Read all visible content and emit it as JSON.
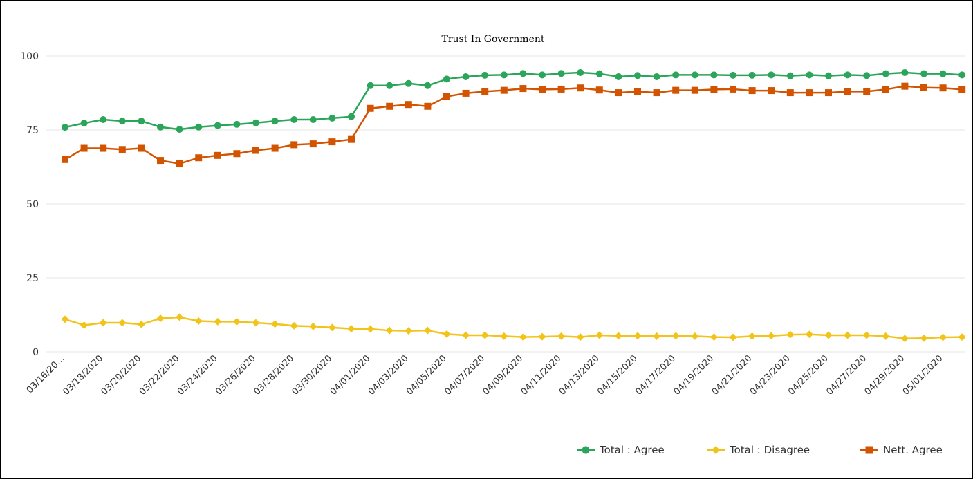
{
  "chart_data": {
    "type": "line",
    "title": "Trust In Government",
    "xlabel": "",
    "ylabel": "",
    "ylim": [
      0,
      100
    ],
    "yticks": [
      0,
      25,
      50,
      75,
      100
    ],
    "grid": true,
    "legend_position": "bottom-right",
    "x": [
      "03/16/2020",
      "03/17/2020",
      "03/18/2020",
      "03/19/2020",
      "03/20/2020",
      "03/21/2020",
      "03/22/2020",
      "03/23/2020",
      "03/24/2020",
      "03/25/2020",
      "03/26/2020",
      "03/27/2020",
      "03/28/2020",
      "03/29/2020",
      "03/30/2020",
      "03/31/2020",
      "04/01/2020",
      "04/02/2020",
      "04/03/2020",
      "04/04/2020",
      "04/05/2020",
      "04/06/2020",
      "04/07/2020",
      "04/08/2020",
      "04/09/2020",
      "04/10/2020",
      "04/11/2020",
      "04/12/2020",
      "04/13/2020",
      "04/14/2020",
      "04/15/2020",
      "04/16/2020",
      "04/17/2020",
      "04/18/2020",
      "04/19/2020",
      "04/20/2020",
      "04/21/2020",
      "04/22/2020",
      "04/23/2020",
      "04/24/2020",
      "04/25/2020",
      "04/26/2020",
      "04/27/2020",
      "04/28/2020",
      "04/29/2020",
      "04/30/2020",
      "05/01/2020",
      "05/02/2020"
    ],
    "x_tick_labels": [
      "03/16/20…",
      "03/18/2020",
      "03/20/2020",
      "03/22/2020",
      "03/24/2020",
      "03/26/2020",
      "03/28/2020",
      "03/30/2020",
      "04/01/2020",
      "04/03/2020",
      "04/05/2020",
      "04/07/2020",
      "04/09/2020",
      "04/11/2020",
      "04/13/2020",
      "04/15/2020",
      "04/17/2020",
      "04/19/2020",
      "04/21/2020",
      "04/23/2020",
      "04/25/2020",
      "04/27/2020",
      "04/29/2020",
      "05/01/2020"
    ],
    "series": [
      {
        "name": "Total : Agree",
        "color": "#2aa55a",
        "marker": "circle",
        "values": [
          75.9,
          77.3,
          78.5,
          78.0,
          78.0,
          76.0,
          75.2,
          76.0,
          76.5,
          76.9,
          77.4,
          78.0,
          78.5,
          78.5,
          79.0,
          79.5,
          90.0,
          90.0,
          90.7,
          90.0,
          92.2,
          93.0,
          93.5,
          93.6,
          94.1,
          93.6,
          94.1,
          94.4,
          94.0,
          93.0,
          93.4,
          93.0,
          93.6,
          93.6,
          93.6,
          93.5,
          93.5,
          93.6,
          93.3,
          93.6,
          93.3,
          93.6,
          93.4,
          94.0,
          94.4,
          94.0,
          94.0,
          93.6
        ]
      },
      {
        "name": "Total : Disagree",
        "color": "#f2c318",
        "marker": "diamond",
        "values": [
          11.0,
          9.0,
          9.8,
          9.8,
          9.3,
          11.3,
          11.7,
          10.4,
          10.2,
          10.2,
          9.8,
          9.4,
          8.8,
          8.6,
          8.2,
          7.8,
          7.7,
          7.2,
          7.1,
          7.2,
          6.0,
          5.6,
          5.6,
          5.3,
          5.0,
          5.1,
          5.3,
          5.0,
          5.6,
          5.4,
          5.4,
          5.3,
          5.4,
          5.3,
          5.0,
          4.9,
          5.3,
          5.4,
          5.8,
          5.9,
          5.6,
          5.6,
          5.6,
          5.3,
          4.5,
          4.6,
          4.9,
          5.0
        ]
      },
      {
        "name": "Nett. Agree",
        "color": "#d35400",
        "marker": "square",
        "values": [
          65.0,
          68.8,
          68.8,
          68.4,
          68.8,
          64.7,
          63.6,
          65.6,
          66.4,
          67.0,
          68.1,
          68.8,
          70.0,
          70.3,
          71.0,
          71.8,
          82.3,
          83.0,
          83.6,
          83.0,
          86.3,
          87.4,
          88.0,
          88.4,
          89.0,
          88.7,
          88.8,
          89.2,
          88.5,
          87.6,
          88.0,
          87.6,
          88.4,
          88.4,
          88.7,
          88.8,
          88.3,
          88.3,
          87.6,
          87.6,
          87.6,
          88.0,
          88.0,
          88.7,
          89.8,
          89.3,
          89.2,
          88.7
        ]
      }
    ]
  }
}
